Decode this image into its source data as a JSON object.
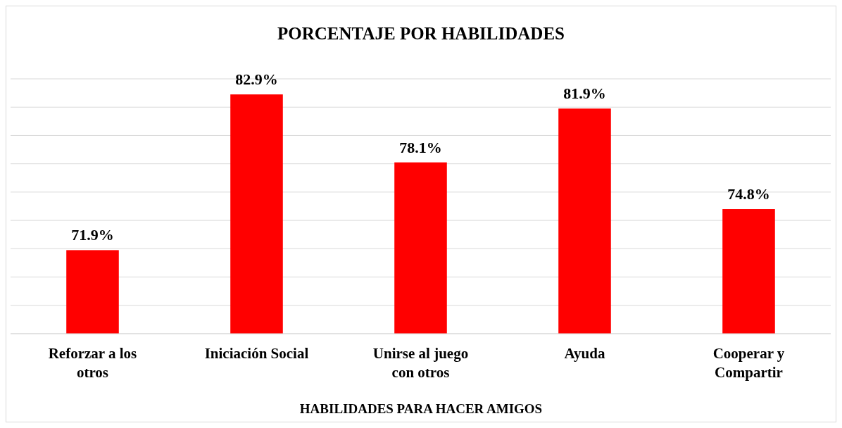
{
  "chart_data": {
    "type": "bar",
    "title": "PORCENTAJE POR HABILIDADES",
    "xlabel": "HABILIDADES PARA HACER AMIGOS",
    "categories": [
      "Reforzar a los otros",
      "Iniciación Social",
      "Unirse al juego con otros",
      "Ayuda",
      "Cooperar y Compartir"
    ],
    "values": [
      71.9,
      82.9,
      78.1,
      81.9,
      74.8
    ],
    "value_labels": [
      "71.9%",
      "82.9%",
      "78.1%",
      "81.9%",
      "74.8%"
    ],
    "color": "#ff0000",
    "ylim": [
      66,
      84
    ],
    "yticks": [
      {
        "value": 66,
        "label": null
      },
      {
        "value": 68,
        "label": null
      },
      {
        "value": 70,
        "label": null
      },
      {
        "value": 72,
        "label": null
      },
      {
        "value": 74,
        "label": null
      },
      {
        "value": 76,
        "label": null
      },
      {
        "value": 78,
        "label": null
      },
      {
        "value": 80,
        "label": null
      },
      {
        "value": 82,
        "label": null
      },
      {
        "value": 84,
        "label": null
      }
    ],
    "tick_labels": "x",
    "grid": "y"
  }
}
